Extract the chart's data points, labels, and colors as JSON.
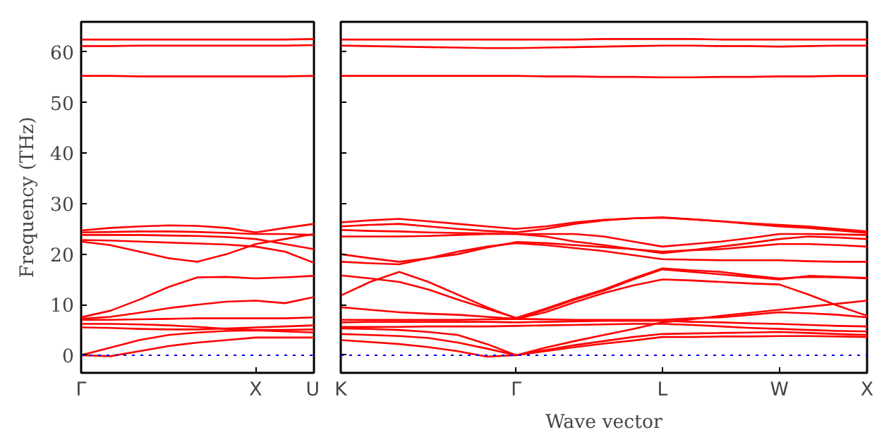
{
  "chart_data": [
    {
      "type": "line",
      "ylabel": "Frequency (THz)",
      "ylim": [
        -3.5,
        66
      ],
      "categories": [
        "Γ",
        null,
        null,
        null,
        null,
        null,
        "X",
        null,
        "U"
      ],
      "yticks": [
        0,
        10,
        20,
        30,
        40,
        50,
        60
      ],
      "grid": false,
      "ref_lines": [
        {
          "axis": "y",
          "value": 0,
          "label": null,
          "color": "#0000ff",
          "line_style": "dotted"
        }
      ],
      "series": [
        {
          "color": "#ff0000",
          "values": [
            0,
            -0.2,
            0.8,
            1.8,
            2.5,
            3.0,
            3.5,
            3.5,
            3.5
          ]
        },
        {
          "color": "#ff0000",
          "values": [
            0,
            1.5,
            3.0,
            4.0,
            4.5,
            4.8,
            4.9,
            4.7,
            4.5
          ]
        },
        {
          "color": "#ff0000",
          "values": [
            5.5,
            5.4,
            5.2,
            5.1,
            5.1,
            5.3,
            5.5,
            5.7,
            5.9
          ]
        },
        {
          "color": "#ff0000",
          "values": [
            6.2,
            6.2,
            6.1,
            5.9,
            5.6,
            5.2,
            5.0,
            5.0,
            5.1
          ]
        },
        {
          "color": "#ff0000",
          "values": [
            7.0,
            7.0,
            7.1,
            7.2,
            7.3,
            7.3,
            7.3,
            7.3,
            7.5
          ]
        },
        {
          "color": "#ff0000",
          "values": [
            7.2,
            7.6,
            8.4,
            9.3,
            10.0,
            10.6,
            10.8,
            10.3,
            11.5
          ]
        },
        {
          "color": "#ff0000",
          "values": [
            7.5,
            8.8,
            11.0,
            13.5,
            15.4,
            15.5,
            15.2,
            15.4,
            15.7
          ]
        },
        {
          "color": "#ff0000",
          "values": [
            22.5,
            21.8,
            20.5,
            19.2,
            18.5,
            20.0,
            22.0,
            23.0,
            24.0
          ]
        },
        {
          "color": "#ff0000",
          "values": [
            22.8,
            22.7,
            22.5,
            22.3,
            22.1,
            21.9,
            21.5,
            20.5,
            18.3
          ]
        },
        {
          "color": "#ff0000",
          "values": [
            23.8,
            23.8,
            23.8,
            23.7,
            23.6,
            23.4,
            23.0,
            22.0,
            21.0
          ]
        },
        {
          "color": "#ff0000",
          "values": [
            24.3,
            24.4,
            24.5,
            24.5,
            24.4,
            24.2,
            24.0,
            24.0,
            23.8
          ]
        },
        {
          "color": "#ff0000",
          "values": [
            24.7,
            25.2,
            25.5,
            25.7,
            25.6,
            25.2,
            24.3,
            25.2,
            26.0
          ]
        },
        {
          "color": "#ff0000",
          "values": [
            55.3,
            55.3,
            55.2,
            55.2,
            55.2,
            55.2,
            55.2,
            55.2,
            55.3
          ]
        },
        {
          "color": "#ff0000",
          "values": [
            61.2,
            61.2,
            61.3,
            61.3,
            61.3,
            61.3,
            61.3,
            61.3,
            61.4
          ]
        },
        {
          "color": "#ff0000",
          "values": [
            62.5,
            62.5,
            62.5,
            62.5,
            62.5,
            62.5,
            62.5,
            62.5,
            62.6
          ]
        }
      ]
    },
    {
      "type": "line",
      "xlabel": "Wave vector",
      "ylim": [
        -3.5,
        66
      ],
      "categories": [
        "K",
        null,
        null,
        null,
        null,
        null,
        "Γ",
        null,
        null,
        null,
        null,
        "L",
        null,
        null,
        null,
        "W",
        null,
        null,
        "X"
      ],
      "yticks": [
        0,
        10,
        20,
        30,
        40,
        50,
        60
      ],
      "tick_labels": "x",
      "grid": false,
      "ref_lines": [
        {
          "axis": "y",
          "value": 0,
          "label": null,
          "color": "#0000ff",
          "line_style": "dotted"
        }
      ],
      "series": [
        {
          "color": "#ff0000",
          "values": [
            3.0,
            2.6,
            2.2,
            1.6,
            0.8,
            -0.3,
            0,
            0.8,
            1.6,
            2.3,
            2.9,
            3.6,
            3.6,
            3.7,
            3.7,
            3.8,
            3.8,
            3.7,
            3.6
          ]
        },
        {
          "color": "#ff0000",
          "values": [
            4.2,
            4.0,
            3.8,
            3.4,
            2.5,
            1.3,
            0,
            1.0,
            2.0,
            2.8,
            3.6,
            4.2,
            4.3,
            4.4,
            4.5,
            4.6,
            4.4,
            4.2,
            4.0
          ]
        },
        {
          "color": "#ff0000",
          "values": [
            5.3,
            5.2,
            5.0,
            4.6,
            4.0,
            2.2,
            0,
            1.5,
            2.8,
            4.0,
            5.2,
            6.5,
            7.1,
            7.8,
            8.4,
            9.0,
            9.6,
            10.2,
            10.8
          ]
        },
        {
          "color": "#ff0000",
          "values": [
            5.6,
            5.6,
            5.6,
            5.7,
            5.7,
            5.7,
            5.8,
            5.9,
            6.0,
            6.1,
            6.2,
            6.2,
            6.0,
            5.7,
            5.4,
            5.2,
            5.0,
            4.8,
            4.7
          ]
        },
        {
          "color": "#ff0000",
          "values": [
            6.5,
            6.6,
            6.6,
            6.6,
            6.6,
            6.6,
            6.5,
            6.6,
            6.7,
            6.8,
            6.8,
            6.8,
            6.6,
            6.5,
            6.3,
            6.2,
            6.0,
            5.8,
            5.7
          ]
        },
        {
          "color": "#ff0000",
          "values": [
            7.0,
            7.0,
            7.0,
            7.0,
            7.0,
            7.1,
            7.2,
            7.1,
            7.0,
            7.0,
            7.0,
            7.0,
            7.3,
            7.5,
            8.0,
            8.5,
            8.3,
            8.0,
            7.5
          ]
        },
        {
          "color": "#ff0000",
          "values": [
            9.5,
            9.0,
            8.5,
            8.2,
            8.0,
            7.6,
            7.2,
            8.5,
            10.5,
            12.3,
            13.8,
            15.0,
            14.8,
            14.5,
            14.2,
            14.0,
            12.0,
            9.8,
            7.8
          ]
        },
        {
          "color": "#ff0000",
          "values": [
            11.8,
            14.5,
            16.5,
            14.5,
            12.0,
            9.5,
            7.3,
            9.0,
            11.0,
            12.8,
            15.0,
            17.0,
            16.5,
            16.0,
            15.5,
            15.0,
            15.7,
            15.5,
            15.3
          ]
        },
        {
          "color": "#ff0000",
          "values": [
            15.8,
            15.2,
            14.5,
            13.0,
            11.0,
            9.2,
            7.4,
            9.2,
            11.2,
            13.0,
            15.2,
            17.2,
            16.8,
            16.5,
            15.8,
            15.2,
            15.5,
            15.4,
            15.2
          ]
        },
        {
          "color": "#ff0000",
          "values": [
            18.5,
            18.2,
            18.0,
            19.2,
            20.5,
            21.5,
            22.2,
            21.8,
            21.2,
            20.6,
            19.8,
            19.0,
            18.9,
            18.8,
            18.8,
            18.8,
            18.6,
            18.5,
            18.5
          ]
        },
        {
          "color": "#ff0000",
          "values": [
            20.0,
            19.2,
            18.5,
            19.2,
            20.0,
            21.3,
            22.4,
            22.2,
            21.8,
            21.4,
            21.0,
            20.5,
            20.8,
            21.0,
            21.5,
            22.0,
            22.0,
            21.8,
            21.5
          ]
        },
        {
          "color": "#ff0000",
          "values": [
            23.5,
            23.5,
            23.5,
            23.6,
            23.8,
            24.0,
            24.0,
            23.5,
            22.5,
            21.8,
            21.0,
            20.2,
            20.8,
            21.5,
            22.2,
            23.0,
            23.5,
            23.3,
            23.0
          ]
        },
        {
          "color": "#ff0000",
          "values": [
            24.8,
            24.6,
            24.5,
            24.3,
            24.2,
            24.1,
            24.0,
            24.0,
            24.0,
            23.5,
            22.5,
            21.5,
            22.0,
            22.5,
            23.2,
            24.0,
            24.0,
            23.9,
            23.8
          ]
        },
        {
          "color": "#ff0000",
          "values": [
            25.5,
            25.8,
            26.0,
            25.5,
            25.0,
            24.6,
            24.3,
            25.0,
            26.0,
            26.7,
            27.1,
            27.3,
            26.9,
            26.5,
            26.0,
            25.5,
            25.2,
            24.7,
            24.2
          ]
        },
        {
          "color": "#ff0000",
          "values": [
            26.3,
            26.7,
            27.0,
            26.5,
            26.0,
            25.5,
            25.0,
            25.5,
            26.3,
            26.8,
            27.1,
            27.2,
            26.9,
            26.5,
            26.1,
            25.8,
            25.5,
            25.0,
            24.5
          ]
        },
        {
          "color": "#ff0000",
          "values": [
            55.3,
            55.3,
            55.3,
            55.3,
            55.3,
            55.3,
            55.3,
            55.2,
            55.2,
            55.1,
            55.1,
            55.0,
            55.0,
            55.1,
            55.1,
            55.2,
            55.2,
            55.3,
            55.3
          ]
        },
        {
          "color": "#ff0000",
          "values": [
            61.3,
            61.2,
            61.1,
            61.0,
            60.9,
            60.8,
            60.8,
            60.9,
            61.0,
            61.1,
            61.2,
            61.3,
            61.3,
            61.2,
            61.2,
            61.1,
            61.2,
            61.3,
            61.3
          ]
        },
        {
          "color": "#ff0000",
          "values": [
            62.5,
            62.5,
            62.5,
            62.5,
            62.5,
            62.5,
            62.5,
            62.5,
            62.5,
            62.6,
            62.6,
            62.6,
            62.6,
            62.5,
            62.5,
            62.5,
            62.5,
            62.5,
            62.5
          ]
        }
      ]
    }
  ]
}
